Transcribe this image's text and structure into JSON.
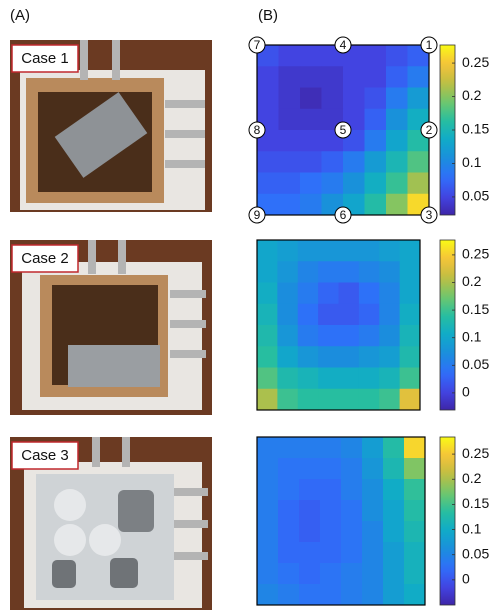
{
  "panel_labels": [
    "(A)",
    "(B)"
  ],
  "cases": [
    {
      "label": "Case 1"
    },
    {
      "label": "Case 2"
    },
    {
      "label": "Case 3"
    }
  ],
  "chart_data": [
    {
      "type": "heatmap",
      "colormap": "parula",
      "point_labels": [
        "7",
        "4",
        "1",
        "8",
        "5",
        "2",
        "9",
        "6",
        "3"
      ],
      "zlim": [
        0.023,
        0.277
      ],
      "zticks": [
        0.05,
        0.1,
        0.15,
        0.2,
        0.25
      ],
      "z": [
        [
          0.06,
          0.05,
          0.05,
          0.05,
          0.05,
          0.05,
          0.06,
          0.07
        ],
        [
          0.05,
          0.04,
          0.04,
          0.04,
          0.05,
          0.05,
          0.07,
          0.09
        ],
        [
          0.05,
          0.04,
          0.03,
          0.04,
          0.05,
          0.06,
          0.09,
          0.12
        ],
        [
          0.05,
          0.04,
          0.04,
          0.04,
          0.05,
          0.07,
          0.11,
          0.14
        ],
        [
          0.05,
          0.05,
          0.05,
          0.05,
          0.06,
          0.09,
          0.13,
          0.16
        ],
        [
          0.06,
          0.06,
          0.06,
          0.07,
          0.09,
          0.12,
          0.15,
          0.18
        ],
        [
          0.07,
          0.07,
          0.08,
          0.09,
          0.11,
          0.14,
          0.17,
          0.21
        ],
        [
          0.08,
          0.08,
          0.09,
          0.11,
          0.13,
          0.16,
          0.2,
          0.26
        ]
      ]
    },
    {
      "type": "heatmap",
      "colormap": "parula",
      "zlim": [
        -0.031,
        0.277
      ],
      "zticks": [
        0,
        0.05,
        0.1,
        0.15,
        0.2,
        0.25
      ],
      "z": [
        [
          0.1,
          0.09,
          0.08,
          0.08,
          0.08,
          0.08,
          0.09,
          0.1
        ],
        [
          0.1,
          0.08,
          0.06,
          0.05,
          0.05,
          0.06,
          0.07,
          0.1
        ],
        [
          0.11,
          0.07,
          0.05,
          0.03,
          0.02,
          0.04,
          0.06,
          0.1
        ],
        [
          0.12,
          0.07,
          0.04,
          0.02,
          0.02,
          0.03,
          0.06,
          0.11
        ],
        [
          0.13,
          0.08,
          0.05,
          0.04,
          0.04,
          0.05,
          0.07,
          0.12
        ],
        [
          0.14,
          0.1,
          0.08,
          0.07,
          0.07,
          0.08,
          0.09,
          0.13
        ],
        [
          0.16,
          0.13,
          0.12,
          0.11,
          0.11,
          0.11,
          0.12,
          0.15
        ],
        [
          0.2,
          0.15,
          0.14,
          0.14,
          0.14,
          0.14,
          0.15,
          0.23
        ]
      ]
    },
    {
      "type": "heatmap",
      "colormap": "parula",
      "zlim": [
        -0.05,
        0.284
      ],
      "zticks": [
        0,
        0.05,
        0.1,
        0.15,
        0.2,
        0.25
      ],
      "z": [
        [
          0.04,
          0.04,
          0.04,
          0.04,
          0.05,
          0.08,
          0.13,
          0.26
        ],
        [
          0.04,
          0.03,
          0.03,
          0.03,
          0.04,
          0.07,
          0.12,
          0.18
        ],
        [
          0.04,
          0.03,
          0.02,
          0.02,
          0.04,
          0.06,
          0.1,
          0.14
        ],
        [
          0.04,
          0.02,
          0.01,
          0.02,
          0.03,
          0.06,
          0.09,
          0.13
        ],
        [
          0.04,
          0.02,
          0.01,
          0.02,
          0.03,
          0.05,
          0.09,
          0.12
        ],
        [
          0.04,
          0.02,
          0.02,
          0.02,
          0.03,
          0.05,
          0.08,
          0.11
        ],
        [
          0.04,
          0.03,
          0.02,
          0.03,
          0.04,
          0.05,
          0.08,
          0.11
        ],
        [
          0.05,
          0.04,
          0.03,
          0.03,
          0.04,
          0.05,
          0.08,
          0.1
        ]
      ]
    }
  ]
}
